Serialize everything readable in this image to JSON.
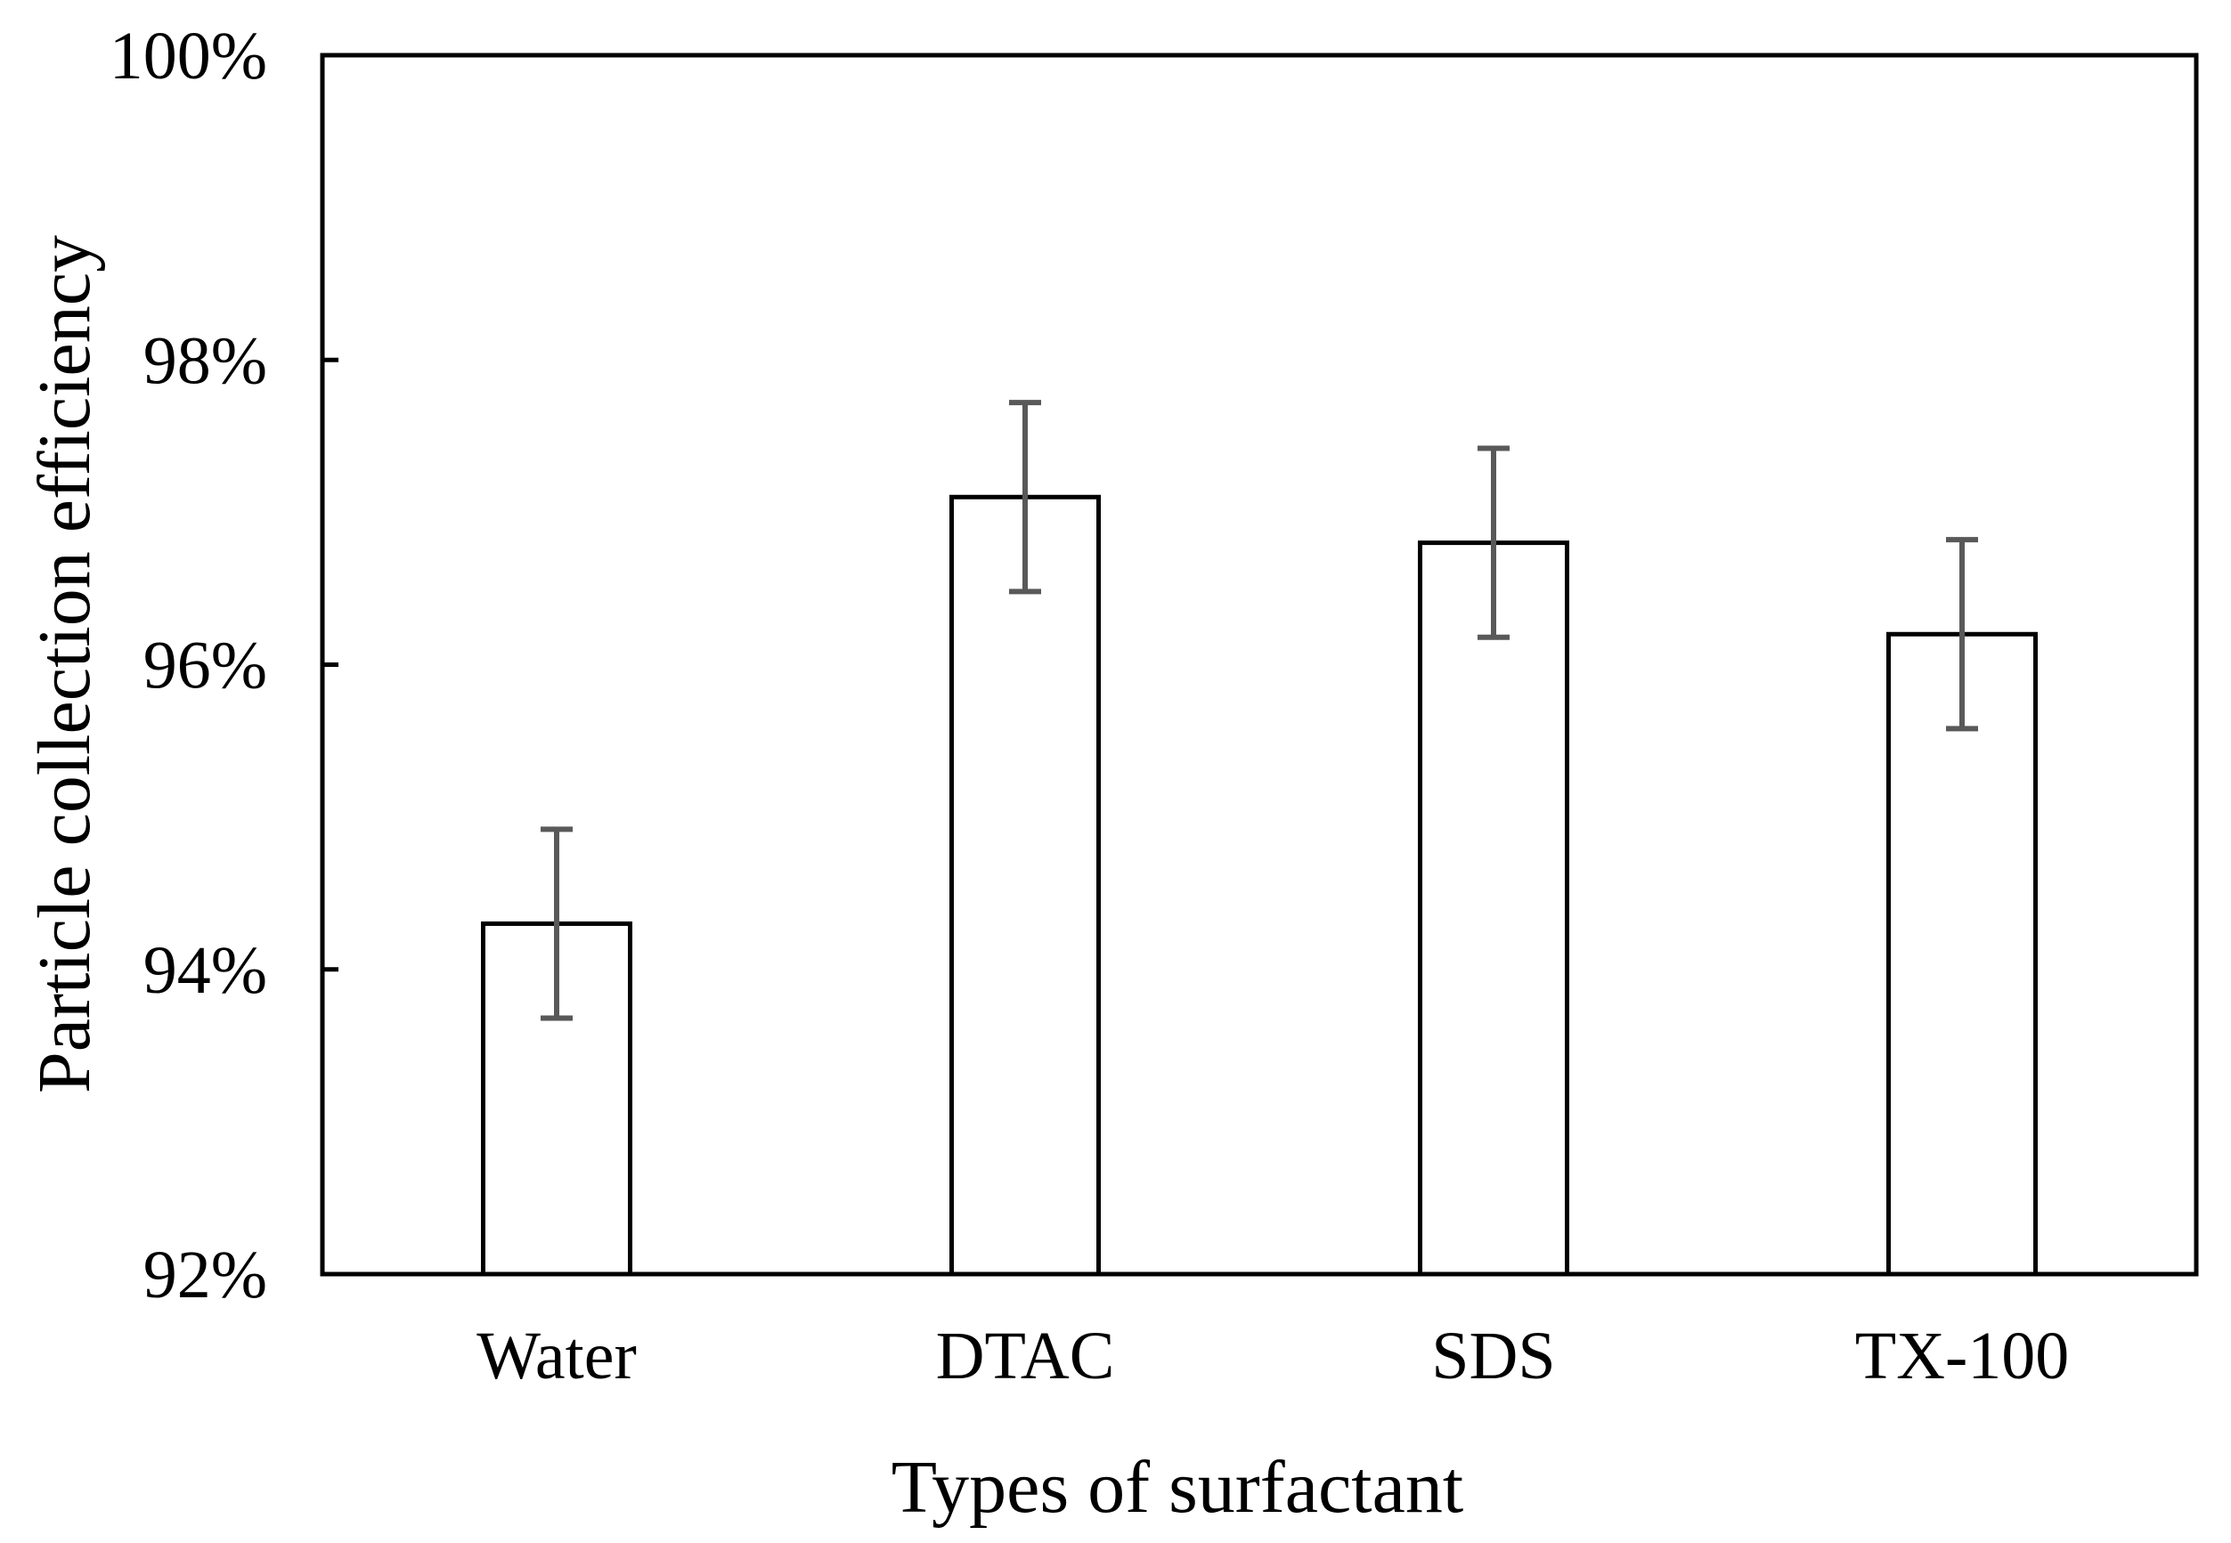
{
  "chart_data": {
    "type": "bar",
    "title": "",
    "xlabel": "Types of surfactant",
    "ylabel": "Particle collection efficiency",
    "categories": [
      "Water",
      "DTAC",
      "SDS",
      "TX-100"
    ],
    "values": [
      94.3,
      97.1,
      96.8,
      96.2
    ],
    "errors": [
      0.62,
      0.62,
      0.62,
      0.62
    ],
    "ylim": [
      92,
      100
    ],
    "yticks": [
      92,
      94,
      96,
      98,
      100
    ],
    "ytick_labels": [
      "92%",
      "94%",
      "96%",
      "98%",
      "100%"
    ],
    "grid": false,
    "legend": "none",
    "bar_fill": "#ffffff",
    "bar_stroke": "#000000",
    "error_color": "#595959"
  }
}
